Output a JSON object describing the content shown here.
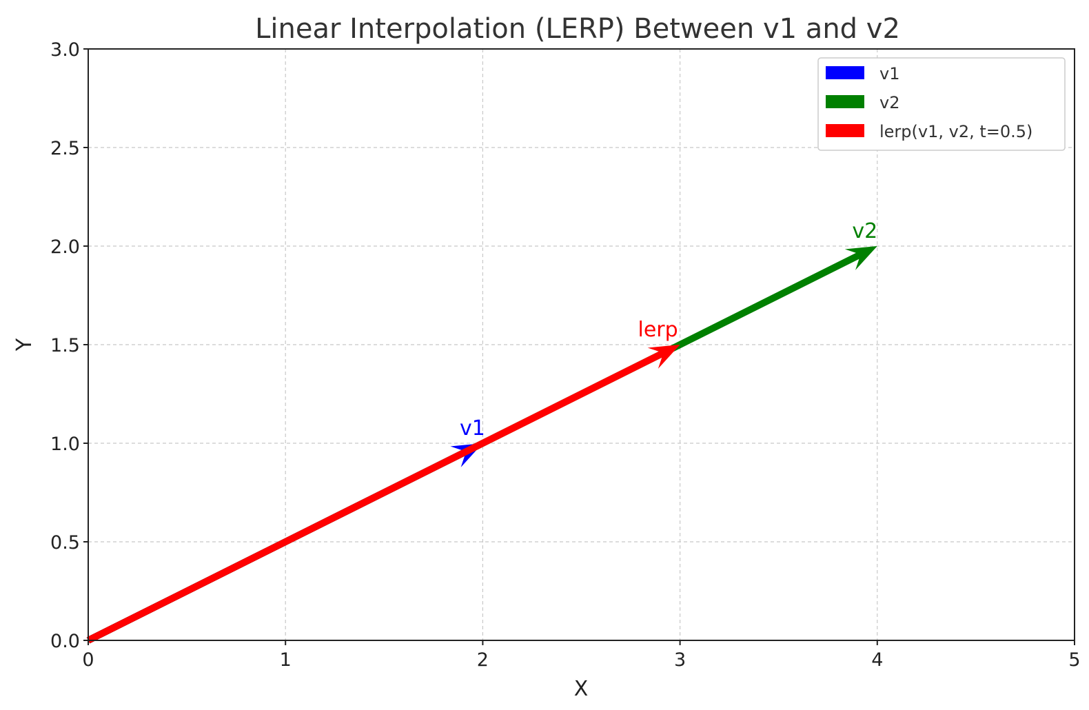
{
  "chart_data": {
    "type": "vector",
    "title": "Linear Interpolation (LERP) Between v1 and v2",
    "xlabel": "X",
    "ylabel": "Y",
    "xlim": [
      0,
      5
    ],
    "ylim": [
      0,
      3.0
    ],
    "xticks": [
      "0",
      "1",
      "2",
      "3",
      "4",
      "5"
    ],
    "yticks": [
      "0.0",
      "0.5",
      "1.0",
      "1.5",
      "2.0",
      "2.5",
      "3.0"
    ],
    "grid": true,
    "legend_position": "top-right",
    "series": [
      {
        "name": "v1",
        "legend": "v1",
        "annotation": "v1",
        "color": "#0000ff",
        "from": [
          0,
          0
        ],
        "to": [
          2,
          1
        ]
      },
      {
        "name": "v2",
        "legend": "v2",
        "annotation": "v2",
        "color": "#008000",
        "from": [
          0,
          0
        ],
        "to": [
          4,
          2
        ]
      },
      {
        "name": "lerp",
        "legend": "lerp(v1, v2, t=0.5)",
        "annotation": "lerp",
        "color": "#ff0000",
        "from": [
          0,
          0
        ],
        "to": [
          3,
          1.5
        ]
      }
    ]
  }
}
